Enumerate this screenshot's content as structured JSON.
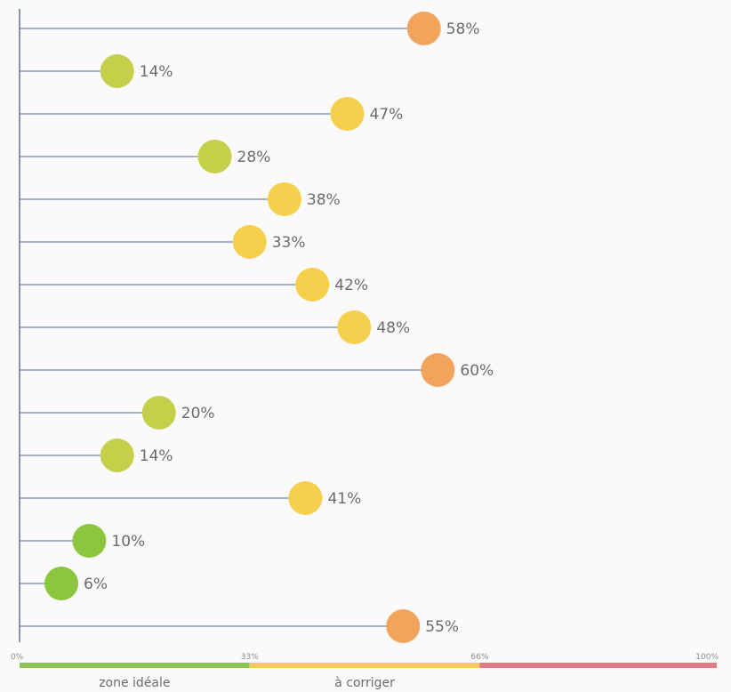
{
  "chart_data": {
    "type": "lollipop",
    "orientation": "horizontal",
    "xlim": [
      0,
      100
    ],
    "ticks": [
      {
        "value": 0,
        "label": "0%"
      },
      {
        "value": 33,
        "label": "33%"
      },
      {
        "value": 66,
        "label": "66%"
      },
      {
        "value": 100,
        "label": "100%"
      }
    ],
    "values": [
      58,
      14,
      47,
      28,
      38,
      33,
      42,
      48,
      60,
      20,
      14,
      41,
      10,
      6,
      55
    ],
    "value_labels": [
      "58%",
      "14%",
      "47%",
      "28%",
      "38%",
      "33%",
      "42%",
      "48%",
      "60%",
      "20%",
      "14%",
      "41%",
      "10%",
      "6%",
      "55%"
    ],
    "zones": [
      {
        "from": 0,
        "to": 33,
        "color": "#8dc455",
        "label": "zone idéale"
      },
      {
        "from": 33,
        "to": 66,
        "color": "#f4c95d",
        "label": "à corriger"
      },
      {
        "from": 66,
        "to": 100,
        "color": "#e07b86",
        "label": ""
      }
    ],
    "dot_colors": {
      "green": "#8cc63f",
      "yellow_green": "#c6cf4a",
      "yellow": "#f6cf4c",
      "orange": "#f3a45c"
    },
    "line_color": "#4e6f93",
    "grid": false
  }
}
